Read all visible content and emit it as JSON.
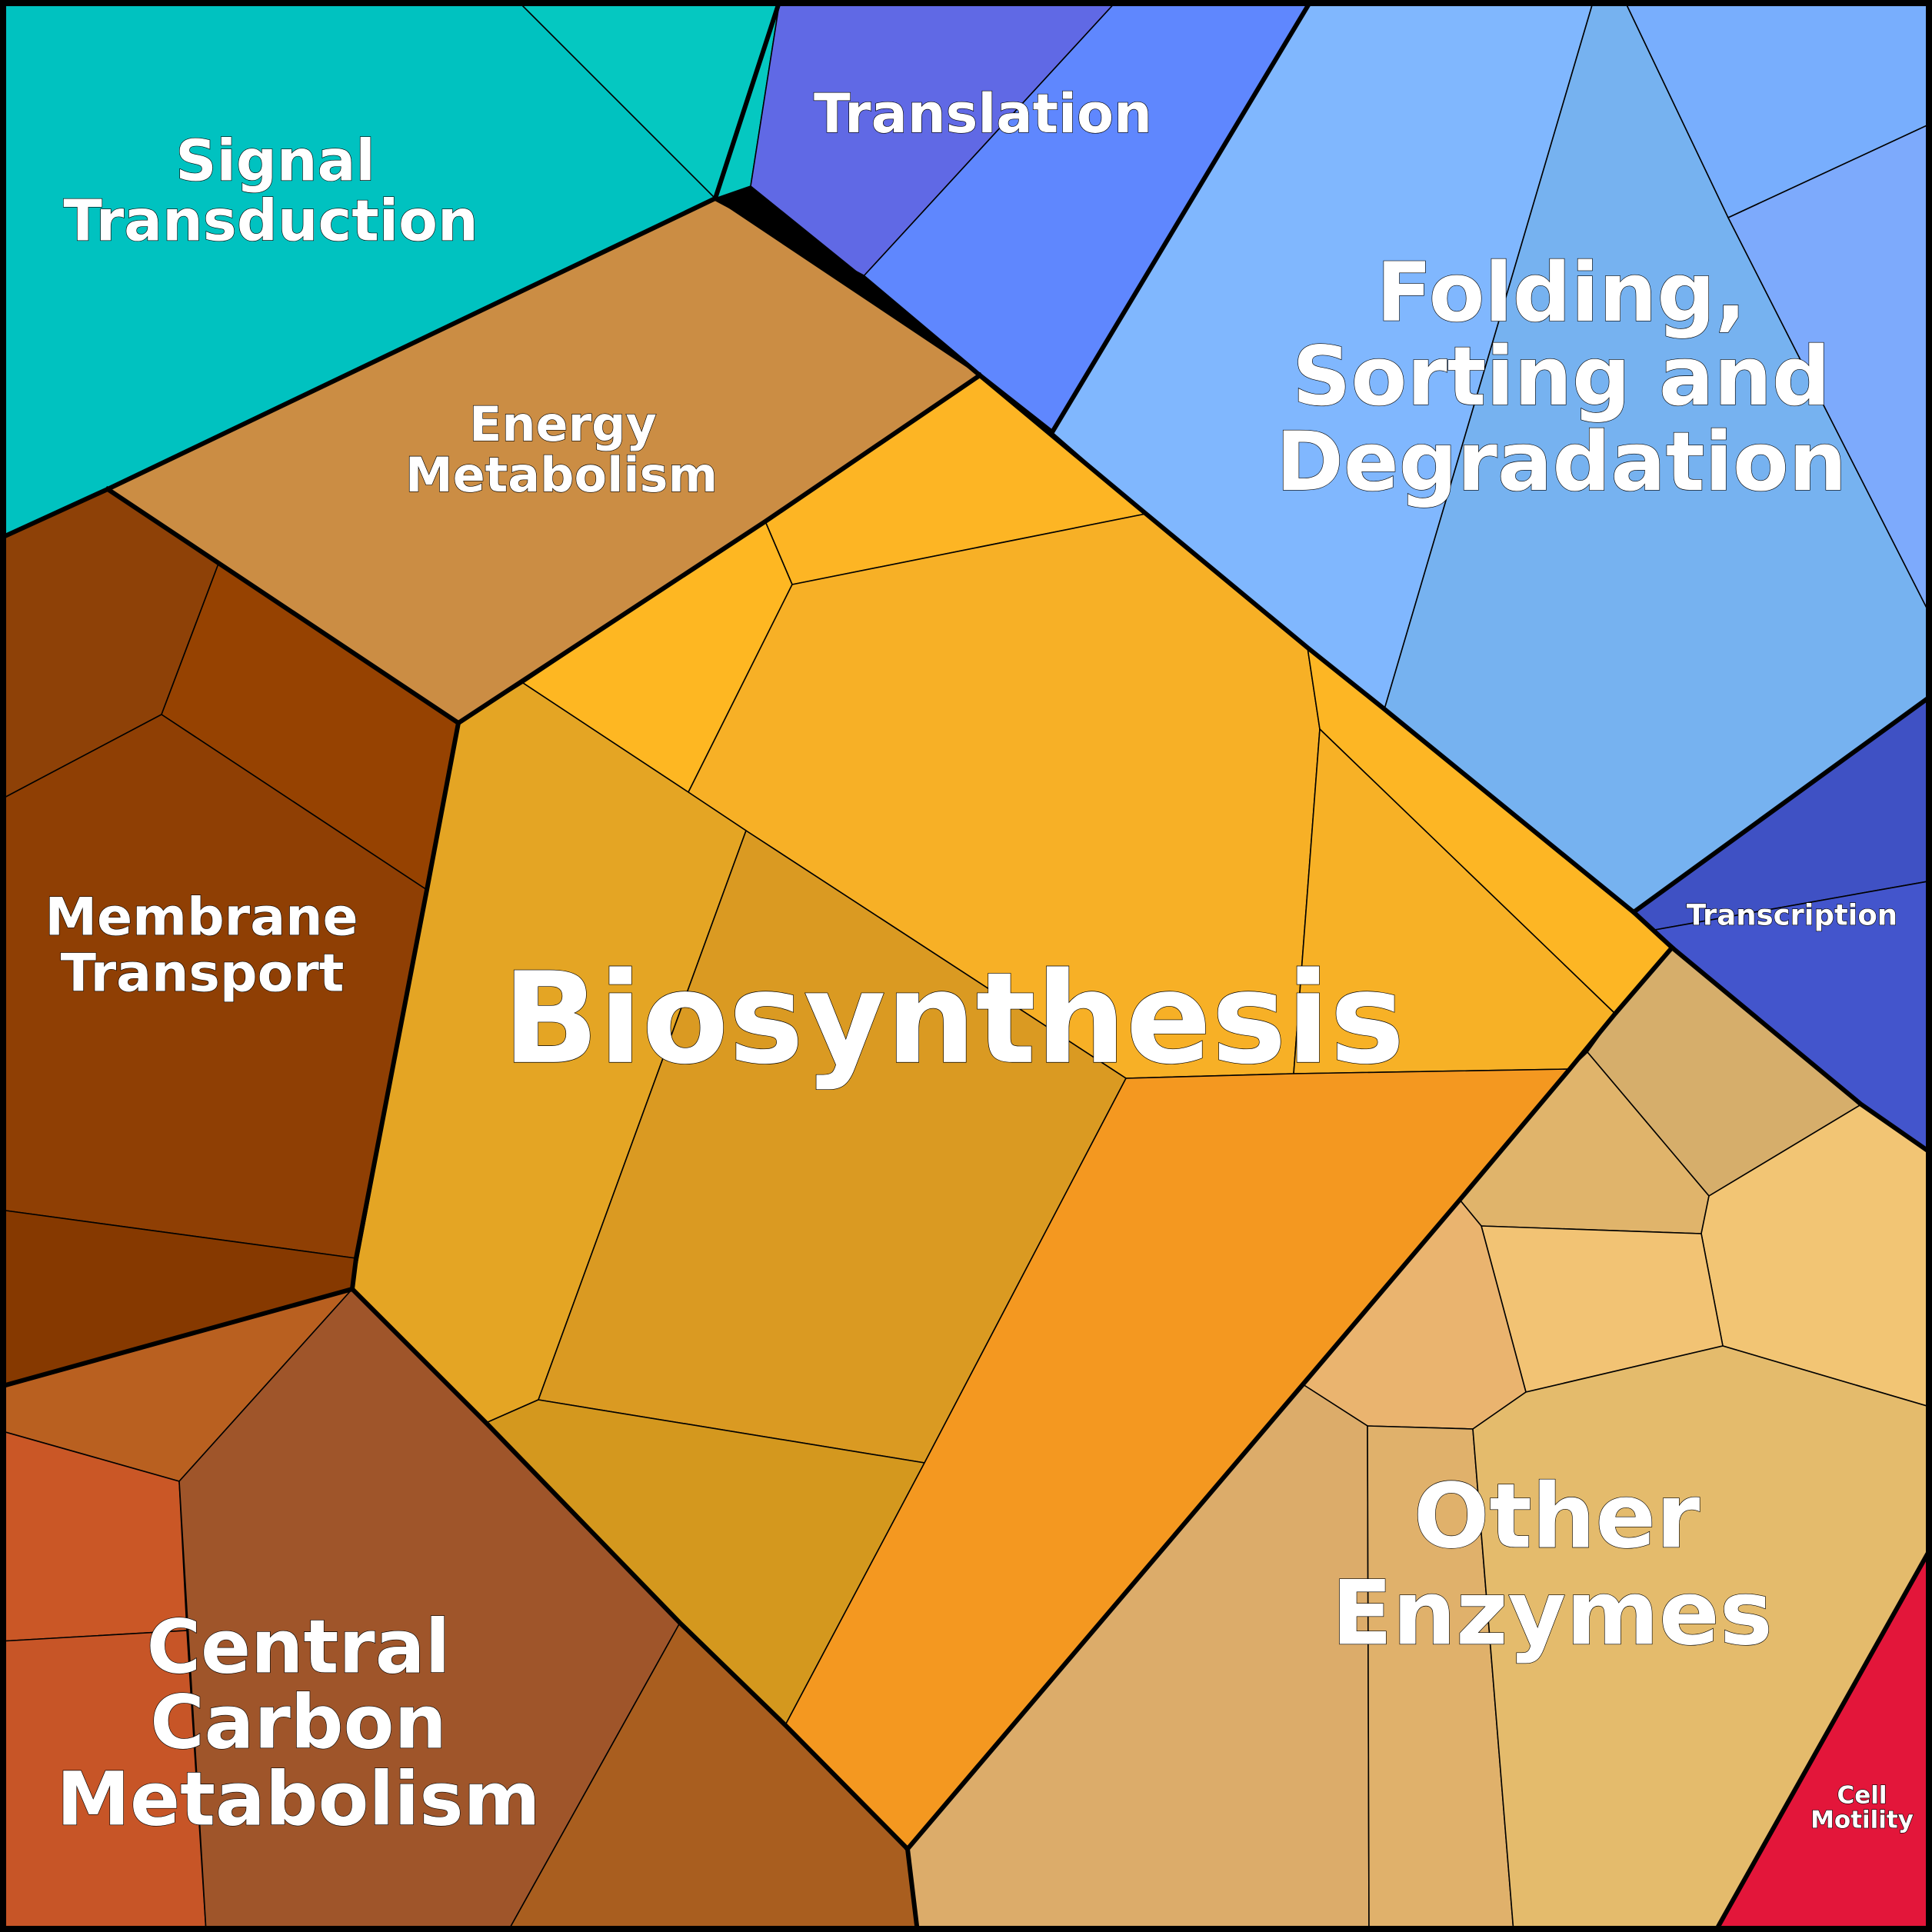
{
  "diagram": {
    "type": "voronoi-treemap",
    "categories": [
      {
        "id": "signal-transduction",
        "lines": [
          "Signal",
          "Transduction"
        ],
        "color": "#00C2C0"
      },
      {
        "id": "translation",
        "lines": [
          "Translation"
        ],
        "color": "#5F6CE6"
      },
      {
        "id": "folding",
        "lines": [
          "Folding,",
          "Sorting and",
          "Degradation"
        ],
        "color": "#7FB6FE"
      },
      {
        "id": "energy-metabolism",
        "lines": [
          "Energy",
          "Metabolism"
        ],
        "color": "#CA8D45"
      },
      {
        "id": "biosynthesis",
        "lines": [
          "Biosynthesis"
        ],
        "color": "#F5B024"
      },
      {
        "id": "membrane-transport",
        "lines": [
          "Membrane",
          "Transport"
        ],
        "color": "#8F3F07"
      },
      {
        "id": "transcription",
        "lines": [
          "Transcription"
        ],
        "color": "#4353C8"
      },
      {
        "id": "central-carbon-metabolism",
        "lines": [
          "Central",
          "Carbon",
          "Metabolism"
        ],
        "color": "#9E552B"
      },
      {
        "id": "other-enzymes",
        "lines": [
          "Other",
          "Enzymes"
        ],
        "color": "#E3B96E"
      },
      {
        "id": "cell-motility",
        "lines": [
          "Cell",
          "Motility"
        ],
        "color": "#E3163B"
      }
    ]
  }
}
